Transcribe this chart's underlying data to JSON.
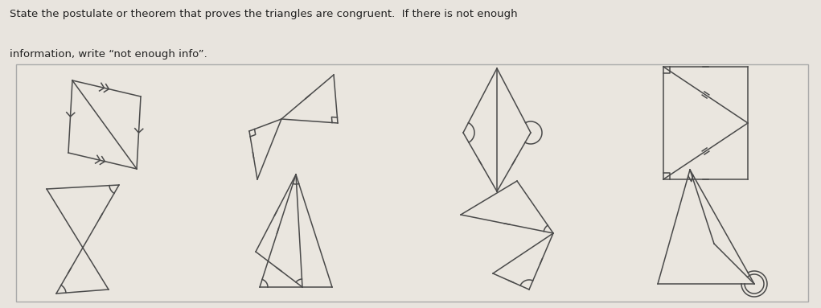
{
  "title_line1": "State the postulate or theorem that proves the triangles are congruent.  If there is not enough",
  "title_line2": "information, write “not enough info”.",
  "bg_color": "#e8e4de",
  "box_color": "#eae6df",
  "line_color": "#4a4a4a",
  "title_color": "#222222"
}
